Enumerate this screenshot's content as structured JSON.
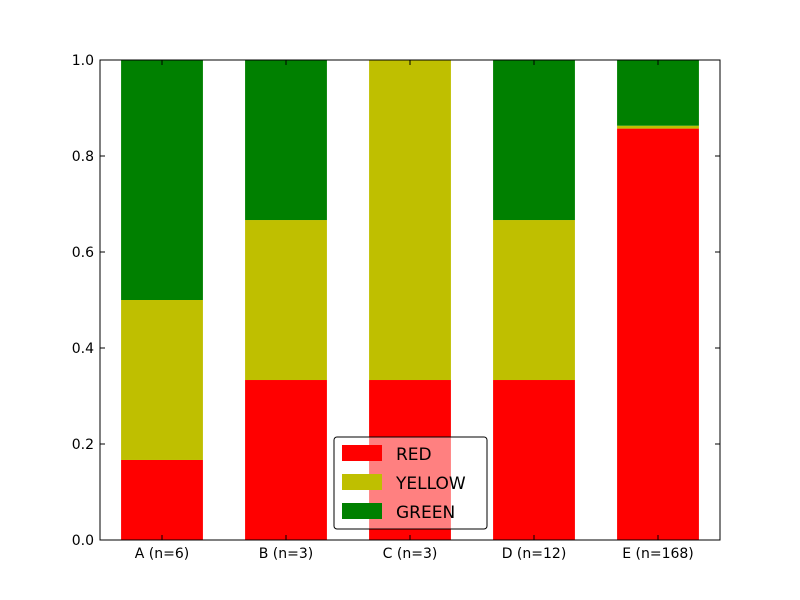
{
  "chart_data": {
    "type": "bar",
    "stacked": true,
    "categories": [
      "A (n=6)",
      "B (n=3)",
      "C (n=3)",
      "D (n=12)",
      "E (n=168)"
    ],
    "series": [
      {
        "name": "RED",
        "color": "#ff0000",
        "values": [
          0.1667,
          0.3333,
          0.3333,
          0.3333,
          0.8571
        ]
      },
      {
        "name": "YELLOW",
        "color": "#bfbf00",
        "values": [
          0.3333,
          0.3333,
          0.6667,
          0.3333,
          0.006
        ]
      },
      {
        "name": "GREEN",
        "color": "#008000",
        "values": [
          0.5,
          0.3333,
          0.0,
          0.3333,
          0.1369
        ]
      }
    ],
    "title": "",
    "xlabel": "",
    "ylabel": "",
    "ylim": [
      0,
      1.0
    ],
    "yticks": [
      "0.0",
      "0.2",
      "0.4",
      "0.6",
      "0.8",
      "1.0"
    ],
    "ytick_values": [
      0,
      0.2,
      0.4,
      0.6,
      0.8,
      1.0
    ],
    "grid": false,
    "legend_position": "bottom-center"
  }
}
